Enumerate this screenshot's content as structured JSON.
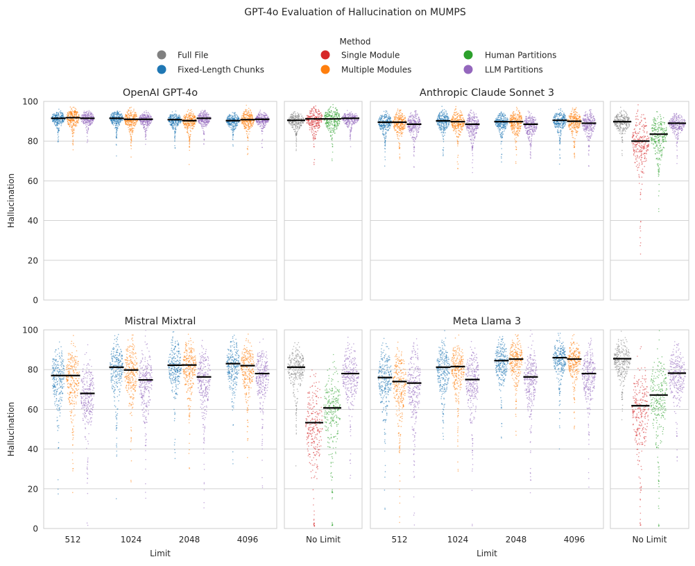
{
  "chart_data": {
    "type": "scatter",
    "subtype": "swarm",
    "title": "GPT-4o Evaluation of Hallucination on MUMPS",
    "ylabel": "Hallucination",
    "xlabel": "Limit",
    "ylim": [
      0,
      100
    ],
    "yticks": [
      "0",
      "20",
      "40",
      "60",
      "80",
      "100"
    ],
    "grid": true,
    "legend": {
      "title": "Method",
      "placement": "top-center",
      "entries": [
        {
          "name": "Full File",
          "color": "#808080"
        },
        {
          "name": "Fixed-Length Chunks",
          "color": "#1f77b4"
        },
        {
          "name": "Single Module",
          "color": "#d62728"
        },
        {
          "name": "Multiple Modules",
          "color": "#ff7f0e"
        },
        {
          "name": "Human Partitions",
          "color": "#2ca02c"
        },
        {
          "name": "LLM Partitions",
          "color": "#9467bd"
        }
      ]
    },
    "limit_categories": [
      "512",
      "1024",
      "2048",
      "4096"
    ],
    "nolimit_category": "No Limit",
    "limited_methods": [
      "Fixed-Length Chunks",
      "Multiple Modules",
      "LLM Partitions"
    ],
    "unlimited_methods": [
      "Full File",
      "Single Module",
      "Human Partitions",
      "LLM Partitions"
    ],
    "models": [
      {
        "name": "OpenAI GPT-4o",
        "limited_means": [
          [
            91.5,
            91.8,
            91.5
          ],
          [
            91.5,
            91.0,
            91.0
          ],
          [
            90.8,
            90.3,
            91.5
          ],
          [
            90.3,
            90.8,
            91.0
          ]
        ],
        "limited_spread": [
          [
            3,
            4,
            3
          ],
          [
            3,
            4,
            3
          ],
          [
            3,
            4,
            3
          ],
          [
            3,
            4,
            3
          ]
        ],
        "unlimited_means": [
          90.5,
          91.2,
          91.2,
          91.5
        ],
        "unlimited_spread": [
          3,
          5,
          5,
          3
        ]
      },
      {
        "name": "Anthropic Claude Sonnet 3",
        "limited_means": [
          [
            89.5,
            89.5,
            88.5
          ],
          [
            90.2,
            89.8,
            88.5
          ],
          [
            89.8,
            89.8,
            88.5
          ],
          [
            90.5,
            90.0,
            89.0
          ]
        ],
        "limited_spread": [
          [
            4,
            5,
            5
          ],
          [
            4,
            5,
            5
          ],
          [
            4,
            5,
            5
          ],
          [
            4,
            5,
            5
          ]
        ],
        "unlimited_means": [
          89.8,
          80.0,
          83.5,
          89.0
        ],
        "unlimited_spread": [
          4,
          12,
          8,
          4
        ]
      },
      {
        "name": "Mistral Mixtral",
        "limited_means": [
          [
            77.0,
            77.0,
            68.0
          ],
          [
            81.2,
            79.8,
            74.8
          ],
          [
            82.2,
            82.3,
            76.3
          ],
          [
            83.0,
            82.0,
            78.0
          ]
        ],
        "limited_spread": [
          [
            13,
            14,
            15
          ],
          [
            12,
            13,
            14
          ],
          [
            11,
            11,
            13
          ],
          [
            11,
            11,
            12
          ]
        ],
        "unlimited_means": [
          81.2,
          53.3,
          60.7,
          78.0
        ],
        "unlimited_spread": [
          9,
          20,
          18,
          12
        ]
      },
      {
        "name": "Meta Llama 3",
        "limited_means": [
          [
            76.0,
            74.0,
            73.2
          ],
          [
            81.2,
            81.5,
            75.0
          ],
          [
            84.5,
            85.3,
            76.3
          ],
          [
            86.0,
            85.3,
            78.0
          ]
        ],
        "limited_spread": [
          [
            14,
            14,
            16
          ],
          [
            11,
            11,
            14
          ],
          [
            9,
            9,
            13
          ],
          [
            8,
            8,
            12
          ]
        ],
        "unlimited_means": [
          85.5,
          61.8,
          67.2,
          78.2
        ],
        "unlimited_spread": [
          8,
          19,
          17,
          12
        ]
      }
    ]
  }
}
